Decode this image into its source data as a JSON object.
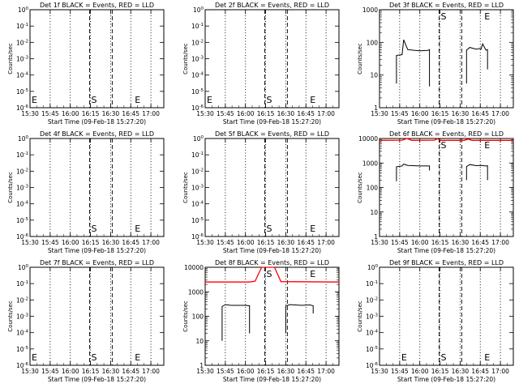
{
  "xlabel": "Start Time (09-Feb-18 15:27:20)",
  "ylabel": "Counts/sec",
  "xticks": [
    "15:30",
    "15:45",
    "16:00",
    "16:15",
    "16:30",
    "16:45",
    "17:00"
  ],
  "colors": {
    "events": "#000000",
    "lld": "#ff0000"
  },
  "chart_data": [
    {
      "type": "line",
      "title": "Det 1f BLACK = Events, RED = LLD",
      "xlim": [
        15.5,
        17.16
      ],
      "scale": "log-empty",
      "yticks": [
        "10^0",
        "10^-1",
        "10^-2",
        "10^-3",
        "10^-4",
        "10^-5",
        "10^-6"
      ],
      "markers": [
        {
          "label": "E",
          "x": 15.5
        },
        {
          "label": "S",
          "x": 16.24
        },
        {
          "label": "E",
          "x": 16.78
        }
      ],
      "dotted_x": [
        15.75,
        16.0,
        16.25,
        16.5,
        16.75,
        17.0
      ],
      "dashed_x": [
        16.24,
        16.52
      ],
      "series": []
    },
    {
      "type": "line",
      "title": "Det 2f BLACK = Events, RED = LLD",
      "xlim": [
        15.5,
        17.16
      ],
      "scale": "log-empty",
      "yticks": [
        "10^0",
        "10^-1",
        "10^-2",
        "10^-3",
        "10^-4",
        "10^-5",
        "10^-6"
      ],
      "markers": [
        {
          "label": "E",
          "x": 15.5
        },
        {
          "label": "S",
          "x": 16.24
        },
        {
          "label": "E",
          "x": 16.78
        }
      ],
      "dotted_x": [
        15.75,
        16.0,
        16.25,
        16.5,
        16.75,
        17.0
      ],
      "dashed_x": [
        16.24,
        16.52
      ],
      "series": []
    },
    {
      "type": "line",
      "title": "Det 3f BLACK = Events, RED = LLD",
      "xlim": [
        15.5,
        17.16
      ],
      "scale": "log",
      "ylim": [
        1,
        1000
      ],
      "yticks": [
        "1000",
        "100",
        "10",
        "1"
      ],
      "markers": [
        {
          "label": "S",
          "x": 16.24
        },
        {
          "label": "E",
          "x": 16.78
        }
      ],
      "dotted_x": [
        15.75,
        16.0,
        16.25,
        16.5,
        16.75,
        17.0
      ],
      "dashed_x": [
        16.24,
        16.52
      ],
      "series": [
        {
          "color": "events",
          "points": [
            [
              15.71,
              5.5
            ],
            [
              15.71,
              40
            ],
            [
              15.78,
              42
            ],
            [
              15.8,
              120
            ],
            [
              15.85,
              60
            ],
            [
              16.0,
              55
            ],
            [
              16.1,
              57
            ],
            [
              16.12,
              60
            ],
            [
              16.12,
              4.5
            ]
          ]
        },
        {
          "color": "events",
          "points": [
            [
              16.58,
              5.5
            ],
            [
              16.58,
              58
            ],
            [
              16.62,
              70
            ],
            [
              16.7,
              62
            ],
            [
              16.74,
              65
            ],
            [
              16.76,
              62
            ],
            [
              16.78,
              90
            ],
            [
              16.82,
              58
            ],
            [
              16.84,
              60
            ],
            [
              16.84,
              15
            ]
          ]
        }
      ]
    },
    {
      "type": "line",
      "title": "Det 4f BLACK = Events, RED = LLD",
      "xlim": [
        15.5,
        17.16
      ],
      "scale": "log-empty",
      "yticks": [
        "10^0",
        "10^-1",
        "10^-2",
        "10^-3",
        "10^-4",
        "10^-5",
        "10^-6"
      ],
      "markers": [
        {
          "label": "S",
          "x": 16.24
        },
        {
          "label": "E",
          "x": 16.78
        }
      ],
      "dotted_x": [
        15.75,
        16.0,
        16.25,
        16.5,
        16.75,
        17.0
      ],
      "dashed_x": [
        16.24,
        16.52
      ],
      "series": []
    },
    {
      "type": "line",
      "title": "Det 5f BLACK = Events, RED = LLD",
      "xlim": [
        15.5,
        17.16
      ],
      "scale": "log-empty",
      "yticks": [
        "10^0",
        "10^-1",
        "10^-2",
        "10^-3",
        "10^-4",
        "10^-5",
        "10^-6"
      ],
      "markers": [
        {
          "label": "S",
          "x": 16.24
        },
        {
          "label": "E",
          "x": 16.78
        }
      ],
      "dotted_x": [
        15.75,
        16.0,
        16.25,
        16.5,
        16.75,
        17.0
      ],
      "dashed_x": [
        16.24,
        16.52
      ],
      "series": []
    },
    {
      "type": "line",
      "title": "Det 6f BLACK = Events, RED = LLD",
      "xlim": [
        15.5,
        17.16
      ],
      "scale": "log",
      "ylim": [
        1,
        10000
      ],
      "yticks": [
        "10000",
        "1000",
        "100",
        "10",
        "1"
      ],
      "markers": [
        {
          "label": "S",
          "x": 16.24
        },
        {
          "label": "E",
          "x": 16.78
        }
      ],
      "dotted_x": [
        15.75,
        16.0,
        16.25,
        16.5,
        16.75,
        17.0
      ],
      "dashed_x": [
        16.24,
        16.52
      ],
      "series": [
        {
          "color": "lld",
          "points": [
            [
              15.5,
              8400
            ],
            [
              15.78,
              8500
            ],
            [
              15.84,
              10200
            ],
            [
              15.9,
              8400
            ],
            [
              16.18,
              8500
            ],
            [
              16.22,
              9800
            ],
            [
              16.26,
              8400
            ],
            [
              16.55,
              8400
            ],
            [
              16.6,
              9500
            ],
            [
              16.65,
              8400
            ],
            [
              17.16,
              8400
            ]
          ]
        },
        {
          "color": "events",
          "points": [
            [
              15.71,
              180
            ],
            [
              15.71,
              700
            ],
            [
              15.78,
              760
            ],
            [
              15.8,
              900
            ],
            [
              15.85,
              800
            ],
            [
              16.0,
              760
            ],
            [
              16.12,
              760
            ],
            [
              16.12,
              500
            ]
          ]
        },
        {
          "color": "events",
          "points": [
            [
              16.58,
              200
            ],
            [
              16.58,
              720
            ],
            [
              16.62,
              860
            ],
            [
              16.7,
              780
            ],
            [
              16.76,
              800
            ],
            [
              16.82,
              760
            ],
            [
              16.84,
              770
            ],
            [
              16.84,
              200
            ]
          ]
        }
      ]
    },
    {
      "type": "line",
      "title": "Det 7f BLACK = Events, RED = LLD",
      "xlim": [
        15.5,
        17.16
      ],
      "scale": "log-empty",
      "yticks": [
        "10^0",
        "10^-1",
        "10^-2",
        "10^-3",
        "10^-4",
        "10^-5",
        "10^-6"
      ],
      "markers": [
        {
          "label": "E",
          "x": 15.5
        },
        {
          "label": "S",
          "x": 16.24
        },
        {
          "label": "E",
          "x": 16.78
        }
      ],
      "dotted_x": [
        15.75,
        16.0,
        16.25,
        16.5,
        16.75,
        17.0
      ],
      "dashed_x": [
        16.24,
        16.52
      ],
      "series": []
    },
    {
      "type": "line",
      "title": "Det 8f BLACK = Events, RED = LLD",
      "xlim": [
        15.5,
        17.16
      ],
      "scale": "log",
      "ylim": [
        1,
        10000
      ],
      "yticks": [
        "10000",
        "1000",
        "100",
        "10",
        "1"
      ],
      "markers": [
        {
          "label": "S",
          "x": 16.24
        },
        {
          "label": "E",
          "x": 16.78
        }
      ],
      "dotted_x": [
        15.75,
        16.0,
        16.25,
        16.5,
        16.75,
        17.0
      ],
      "dashed_x": [
        16.24,
        16.52
      ],
      "series": [
        {
          "color": "lld",
          "points": [
            [
              15.5,
              2500
            ],
            [
              16.05,
              2500
            ],
            [
              16.12,
              2700
            ],
            [
              16.2,
              14000
            ],
            [
              16.36,
              14000
            ],
            [
              16.44,
              2600
            ],
            [
              17.16,
              2500
            ]
          ]
        },
        {
          "color": "events",
          "points": [
            [
              15.71,
              10
            ],
            [
              15.71,
              250
            ],
            [
              15.75,
              300
            ],
            [
              15.82,
              280
            ],
            [
              16.0,
              280
            ],
            [
              16.05,
              270
            ],
            [
              16.05,
              20
            ]
          ]
        },
        {
          "color": "events",
          "points": [
            [
              16.5,
              20
            ],
            [
              16.5,
              260
            ],
            [
              16.55,
              300
            ],
            [
              16.7,
              280
            ],
            [
              16.8,
              290
            ],
            [
              16.84,
              270
            ],
            [
              16.84,
              130
            ]
          ]
        }
      ]
    },
    {
      "type": "line",
      "title": "Det 9f BLACK = Events, RED = LLD",
      "xlim": [
        15.5,
        17.16
      ],
      "scale": "log-empty",
      "yticks": [
        "10^0",
        "10^-1",
        "10^-2",
        "10^-3",
        "10^-4",
        "10^-5",
        "10^-6"
      ],
      "markers": [
        {
          "label": "E",
          "x": 15.75
        },
        {
          "label": "S",
          "x": 16.24
        },
        {
          "label": "E",
          "x": 16.78
        }
      ],
      "dotted_x": [
        15.75,
        16.0,
        16.25,
        16.5,
        16.75,
        17.0
      ],
      "dashed_x": [
        16.24,
        16.52
      ],
      "series": []
    }
  ]
}
